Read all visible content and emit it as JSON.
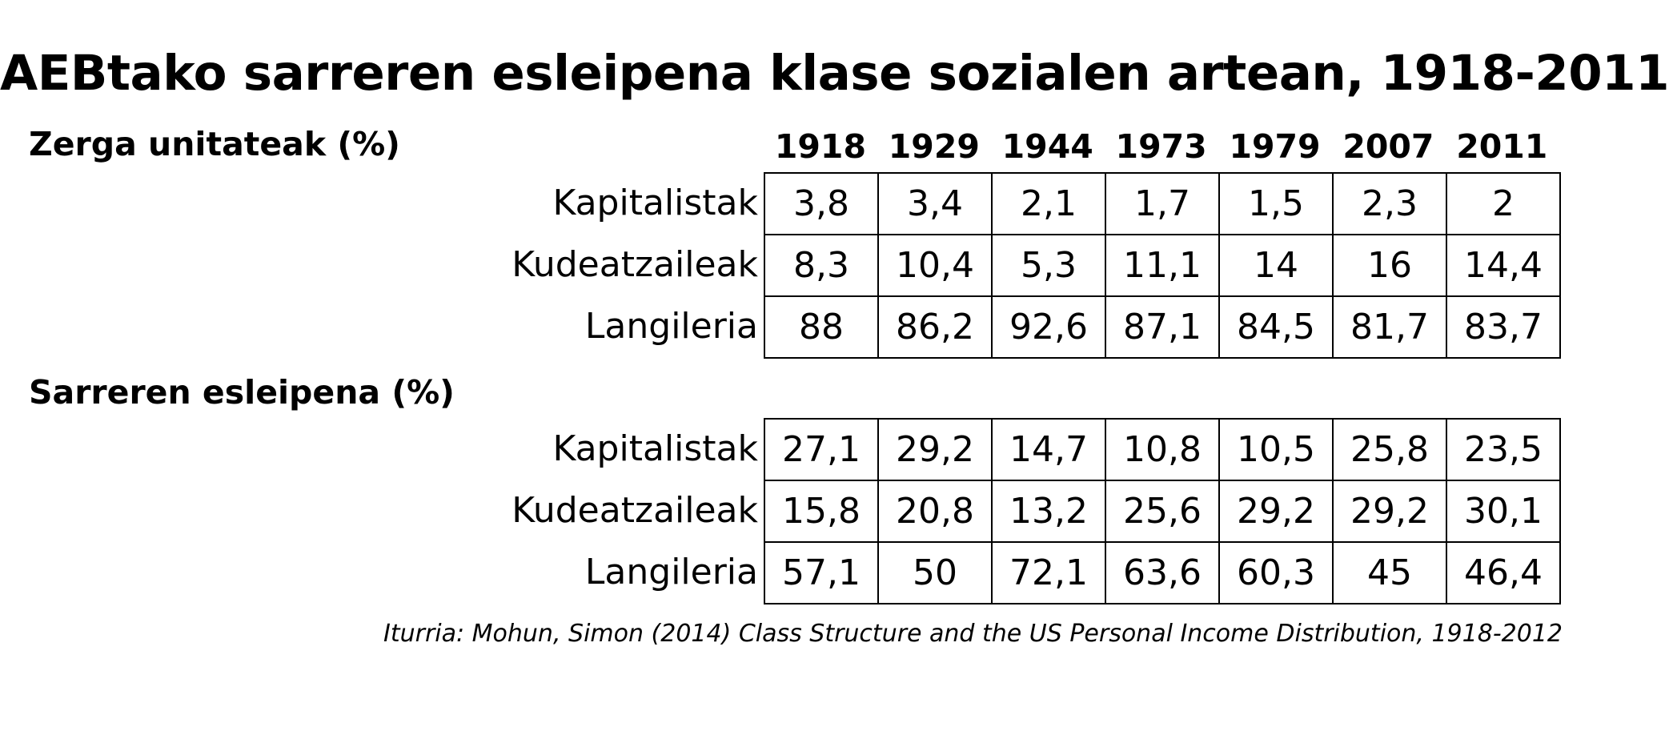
{
  "title": "AEBtako sarreren esleipena klase sozialen artean, 1918-2011",
  "years": [
    "1918",
    "1929",
    "1944",
    "1973",
    "1979",
    "2007",
    "2011"
  ],
  "tables": [
    {
      "heading": "Zerga unitateak (%)",
      "rows": [
        {
          "label": "Kapitalistak",
          "values": [
            "3,8",
            "3,4",
            "2,1",
            "1,7",
            "1,5",
            "2,3",
            "2"
          ]
        },
        {
          "label": "Kudeatzaileak",
          "values": [
            "8,3",
            "10,4",
            "5,3",
            "11,1",
            "14",
            "16",
            "14,4"
          ]
        },
        {
          "label": "Langileria",
          "values": [
            "88",
            "86,2",
            "92,6",
            "87,1",
            "84,5",
            "81,7",
            "83,7"
          ]
        }
      ]
    },
    {
      "heading": "Sarreren esleipena (%)",
      "rows": [
        {
          "label": "Kapitalistak",
          "values": [
            "27,1",
            "29,2",
            "14,7",
            "10,8",
            "10,5",
            "25,8",
            "23,5"
          ]
        },
        {
          "label": "Kudeatzaileak",
          "values": [
            "15,8",
            "20,8",
            "13,2",
            "25,6",
            "29,2",
            "29,2",
            "30,1"
          ]
        },
        {
          "label": "Langileria",
          "values": [
            "57,1",
            "50",
            "72,1",
            "63,6",
            "60,3",
            "45",
            "46,4"
          ]
        }
      ]
    }
  ],
  "source": "Iturria: Mohun, Simon (2014) Class Structure and the US Personal Income Distribution, 1918-2012"
}
